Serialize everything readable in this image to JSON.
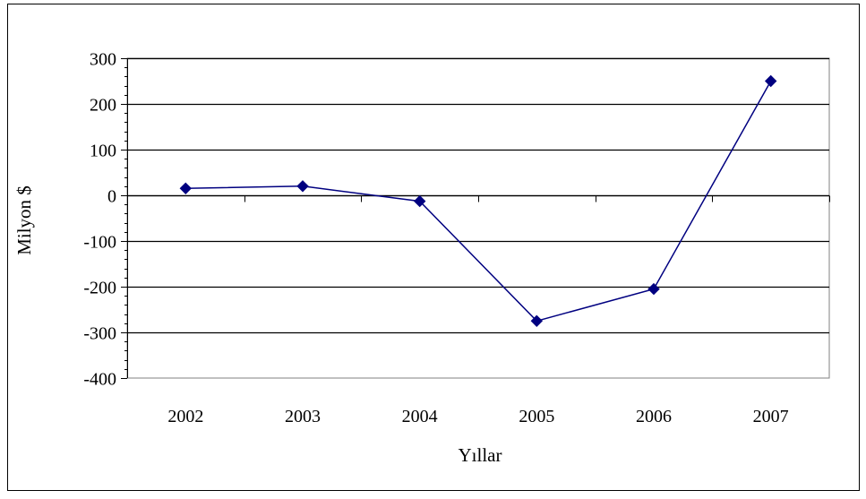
{
  "chart_data": {
    "type": "line",
    "categories": [
      "2002",
      "2003",
      "2004",
      "2005",
      "2006",
      "2007"
    ],
    "series": [
      {
        "values": [
          15,
          20,
          -13,
          -275,
          -205,
          250
        ],
        "color": "#000080",
        "marker": "diamond"
      }
    ],
    "xlabel": "Yıllar",
    "ylabel": "Milyon $",
    "ylim": [
      -400,
      300
    ],
    "yticks": [
      "300",
      "200",
      "100",
      "0",
      "-100",
      "-200",
      "-300",
      "-400"
    ],
    "grid": true,
    "legend": "none"
  }
}
